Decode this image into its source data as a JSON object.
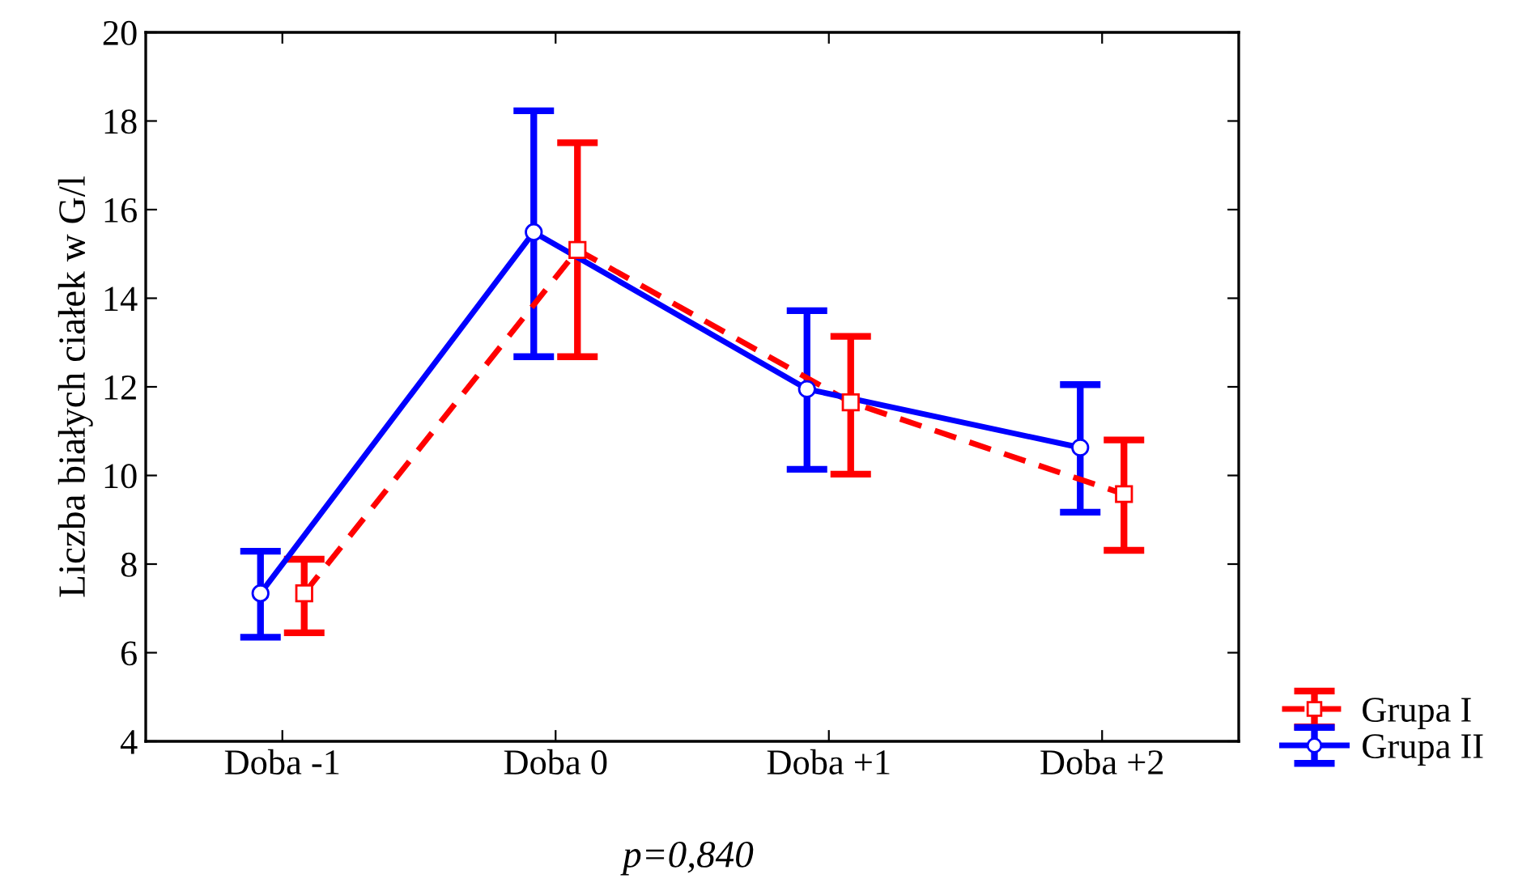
{
  "chart_data": {
    "type": "line",
    "ylabel": "Liczba białych ciałek w G/l",
    "categories": [
      "Doba -1",
      "Doba 0",
      "Doba +1",
      "Doba +2"
    ],
    "series": [
      {
        "name": "Grupa I",
        "color": "#ff0000",
        "marker": "square",
        "line_style": "dashed",
        "values": [
          7.34,
          15.09,
          11.65,
          9.58
        ],
        "errors": [
          [
            6.45,
            8.11
          ],
          [
            12.68,
            17.51
          ],
          [
            10.03,
            13.14
          ],
          [
            8.31,
            10.8
          ]
        ]
      },
      {
        "name": "Grupa II",
        "color": "#0000ff",
        "marker": "circle",
        "line_style": "solid",
        "values": [
          7.34,
          15.49,
          11.95,
          10.63
        ],
        "errors": [
          [
            6.35,
            8.29
          ],
          [
            12.68,
            18.23
          ],
          [
            10.14,
            13.72
          ],
          [
            9.17,
            12.05
          ]
        ]
      }
    ],
    "ylim": [
      4,
      20
    ],
    "yticks": [
      4,
      6,
      8,
      10,
      12,
      14,
      16,
      18,
      20
    ],
    "grid": false,
    "legend": "bottom right",
    "annotations": [
      "p=0,840"
    ]
  }
}
